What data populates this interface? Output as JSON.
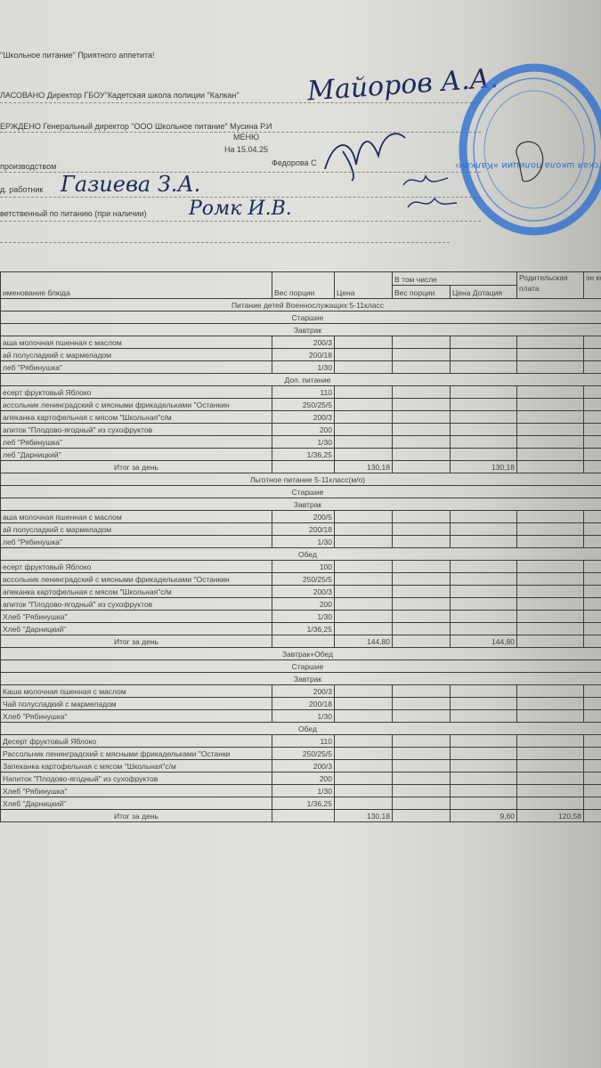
{
  "header": {
    "slogan": "\"Школьное питание\" Приятного аппетита!",
    "agreed": "ЛАСОВАНО  Директор ГБОУ\"Кадетская школа полиции \"Калкан\"",
    "agreed_signature": "Майоров А.А.",
    "approved": "ЕРЖДЕНО  Генеральный директор \"ООО Школьное питание\" Мусина Р.И",
    "menu_title": "МЕНЮ",
    "menu_date": "На 15.04.25",
    "production_label": "производством",
    "production_name": "Федорова С",
    "med_worker_label": "д. работник",
    "med_worker_signature": "Газиева З.А.",
    "responsible_label": "ветственный по питанию (при наличии)",
    "responsible_signature": "Ромк И.В.",
    "stamp_text": "Кадетская школа полиции «Калкан»",
    "stamp_color": "#2f6fd0",
    "ink_color": "#1d2a5a"
  },
  "table": {
    "columns": {
      "name": "именование блюда",
      "weight": "Вес порции",
      "price": "Цена",
      "including": "В том числе",
      "inc_weight": "Вес порции",
      "inc_price": "Цена Дотация",
      "parent_fee": "Родительская плата",
      "energy": "эн кка"
    },
    "sections": [
      {
        "title": "Питание детей Военнослужащих 5-11класс",
        "group": "Старшие",
        "meals": [
          {
            "title": "Завтрак",
            "items": [
              {
                "name": "аша молочная пшенная с маслом",
                "weight": "200/3"
              },
              {
                "name": "ай полусладкий с мармеладом",
                "weight": "200/18"
              },
              {
                "name": "леб \"Рябинушка\"",
                "weight": "1/30"
              }
            ]
          },
          {
            "title": "Доп. питание",
            "items": [
              {
                "name": "есерт фруктовый Яблоко",
                "weight": "110"
              },
              {
                "name": "ассольник ленинградский с мясными фрикадельками \"Останкин",
                "weight": "250/25/5"
              },
              {
                "name": "апеканка картофельная с мясом \"Школьная\"с/м",
                "weight": "200/3"
              },
              {
                "name": "апиток \"Плодово-ягодный\" из сухофруктов",
                "weight": "200"
              },
              {
                "name": "леб \"Рябинушка\"",
                "weight": "1/30"
              },
              {
                "name": "леб \"Дарницкий\"",
                "weight": "1/36,25"
              }
            ]
          }
        ],
        "total": {
          "label": "Итог за день",
          "price": "130,18",
          "inc_weight": "",
          "inc_price": "130,18",
          "parent_fee": ""
        }
      },
      {
        "title": "Льготное питание 5-11класс(м/о)",
        "group": "Старшие",
        "meals": [
          {
            "title": "Завтрак",
            "items": [
              {
                "name": "аша молочная пшенная с маслом",
                "weight": "200/5"
              },
              {
                "name": "ай полусладкий с мармеладом",
                "weight": "200/18"
              },
              {
                "name": "леб \"Рябинушка\"",
                "weight": "1/30"
              }
            ]
          },
          {
            "title": "Обед",
            "items": [
              {
                "name": "есерт фруктовый Яблоко",
                "weight": "100"
              },
              {
                "name": "ассольник ленинградский с мясными фрикадельками \"Останкин",
                "weight": "250/25/5"
              },
              {
                "name": "апеканка картофельная с мясом \"Школьная\"с/м",
                "weight": "200/3"
              },
              {
                "name": "апиток \"Плодово-ягодный\" из сухофруктов",
                "weight": "200"
              },
              {
                "name": "Хлеб \"Рябинушка\"",
                "weight": "1/30"
              },
              {
                "name": "Хлеб \"Дарницкий\"",
                "weight": "1/36,25"
              }
            ]
          }
        ],
        "total": {
          "label": "Итог за день",
          "price": "144,80",
          "inc_weight": "",
          "inc_price": "144,80",
          "parent_fee": ""
        }
      },
      {
        "title": "Завтрак+Обед",
        "group": "Старшие",
        "meals": [
          {
            "title": "Завтрак",
            "items": [
              {
                "name": "Каша молочная пшенная с маслом",
                "weight": "200/3"
              },
              {
                "name": "Чай полусладкий с мармеладом",
                "weight": "200/18"
              },
              {
                "name": "Хлеб \"Рябинушка\"",
                "weight": "1/30"
              }
            ]
          },
          {
            "title": "Обед",
            "items": [
              {
                "name": "Десерт фруктовый Яблоко",
                "weight": "110"
              },
              {
                "name": "Рассольник ленинградский с мясными фрикадельками \"Останки",
                "weight": "250/25/5"
              },
              {
                "name": "Запеканка картофельная с мясом \"Школьная\"с/м",
                "weight": "200/3"
              },
              {
                "name": "Напиток \"Плодово-ягодный\" из сухофруктов",
                "weight": "200"
              },
              {
                "name": "Хлеб \"Рябинушка\"",
                "weight": "1/30"
              },
              {
                "name": "Хлеб \"Дарницкий\"",
                "weight": "1/36,25"
              }
            ]
          }
        ],
        "total": {
          "label": "Итог за день",
          "price": "130,18",
          "inc_weight": "",
          "inc_price": "9,60",
          "parent_fee": "120,58"
        }
      }
    ]
  }
}
